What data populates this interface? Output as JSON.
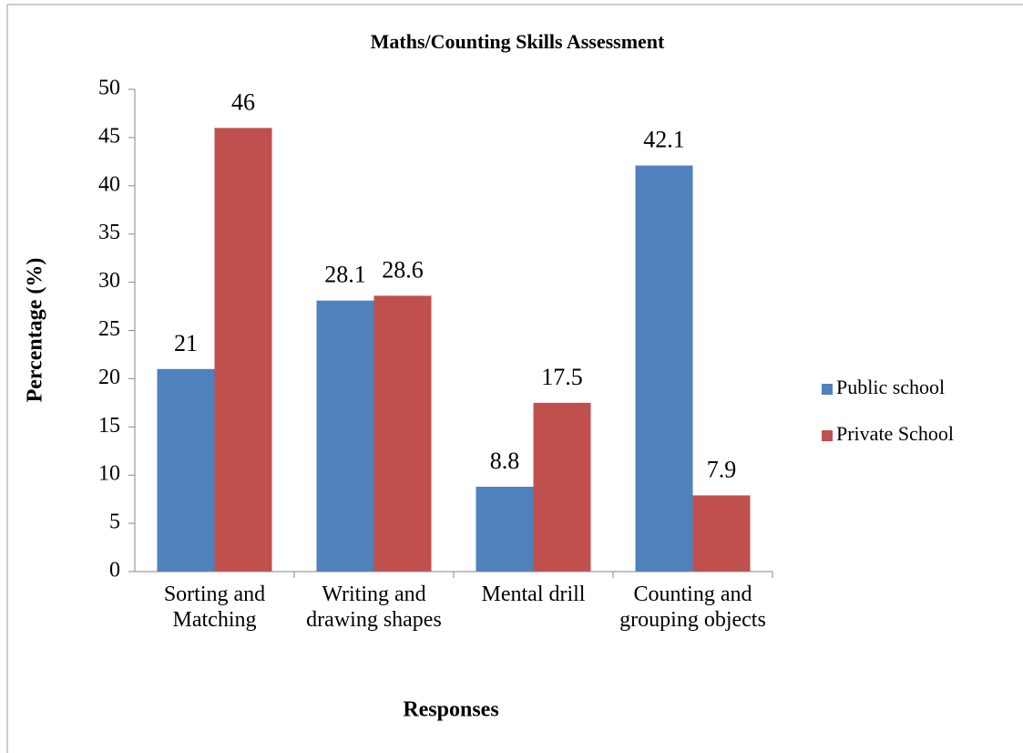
{
  "chart_data": {
    "type": "bar",
    "title": "Maths/Counting Skills Assessment",
    "xlabel": "Responses",
    "ylabel": "Percentage (%)",
    "categories": [
      "Sorting and Matching",
      "Writing and drawing shapes",
      "Mental drill",
      "Counting and grouping objects"
    ],
    "series": [
      {
        "name": "Public school",
        "color": "#4f81bd",
        "values": [
          21,
          28.1,
          8.8,
          42.1
        ]
      },
      {
        "name": "Private School",
        "color": "#c0504d",
        "values": [
          46,
          28.6,
          17.5,
          7.9
        ]
      }
    ],
    "ylim": [
      0,
      50
    ],
    "yticks": [
      0,
      5,
      10,
      15,
      20,
      25,
      30,
      35,
      40,
      45,
      50
    ],
    "grid": false,
    "legend": "right"
  }
}
